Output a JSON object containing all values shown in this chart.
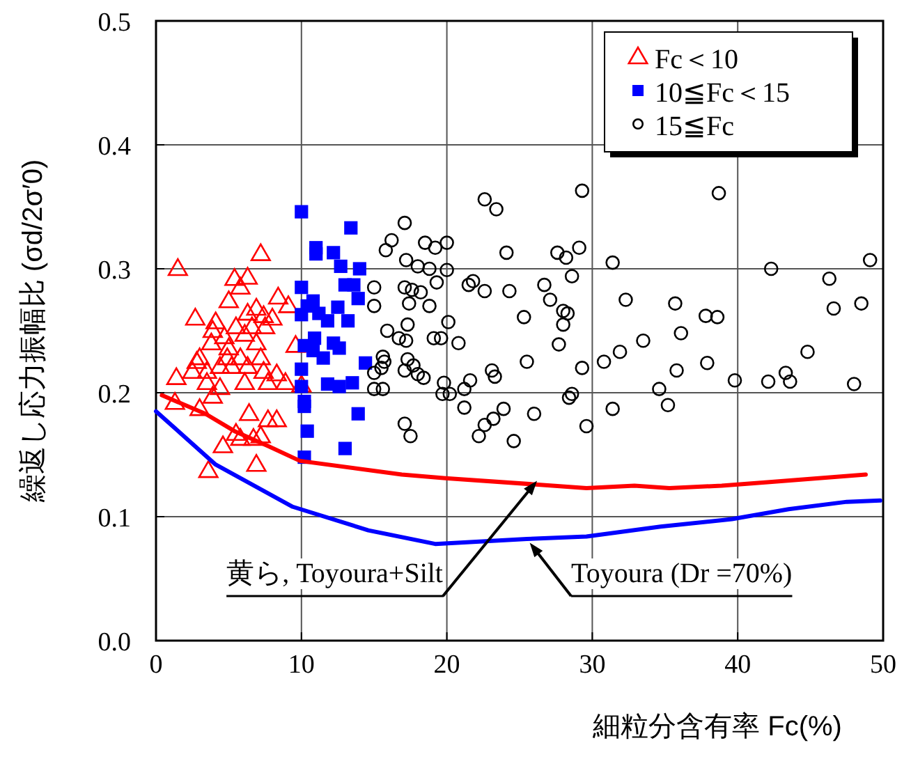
{
  "chart_data": {
    "type": "scatter",
    "xlabel": "細粒分含有率 Fc(%)",
    "ylabel": "繰返し応力振幅比 (σd/2σ′0)",
    "xlim": [
      0,
      50
    ],
    "ylim": [
      0,
      0.5
    ],
    "xticks": [
      0,
      10,
      20,
      30,
      40,
      50
    ],
    "yticks": [
      {
        "value": 0,
        "label": "0.0"
      },
      0.1,
      0.2,
      0.3,
      0.4,
      0.5
    ],
    "grid": true,
    "legend": "top right",
    "series": [
      {
        "name": "Fc＜10",
        "type": "scatter",
        "marker": "triangle",
        "color": "#ff0000",
        "x": [
          7.2,
          1.5,
          5.4,
          6.3,
          5.8,
          8.4,
          9.1,
          5.0,
          2.7,
          4.1,
          6.3,
          6.9,
          7.4,
          8.0,
          5.5,
          6.6,
          7.5,
          6.1,
          3.9,
          4.7,
          3.8,
          5.0,
          6.9,
          9.6,
          3.0,
          2.8,
          4.9,
          5.8,
          7.2,
          2.5,
          3.5,
          4.4,
          5.2,
          6.3,
          7.4,
          8.3,
          1.4,
          3.5,
          4.4,
          6.1,
          7.7,
          8.9,
          10.0,
          3.9,
          1.3,
          3.0,
          6.4,
          7.7,
          8.3,
          5.5,
          5.8,
          4.6,
          7.2,
          6.7,
          6.9,
          3.6
        ],
        "values": [
          0.312,
          0.3,
          0.292,
          0.293,
          0.285,
          0.277,
          0.27,
          0.274,
          0.26,
          0.257,
          0.264,
          0.268,
          0.262,
          0.26,
          0.253,
          0.253,
          0.253,
          0.247,
          0.25,
          0.245,
          0.24,
          0.236,
          0.24,
          0.238,
          0.228,
          0.225,
          0.228,
          0.228,
          0.228,
          0.217,
          0.217,
          0.221,
          0.221,
          0.221,
          0.217,
          0.215,
          0.212,
          0.208,
          0.204,
          0.208,
          0.208,
          0.208,
          0.206,
          0.197,
          0.192,
          0.187,
          0.183,
          0.178,
          0.178,
          0.167,
          0.163,
          0.157,
          0.165,
          0.163,
          0.142,
          0.137
        ]
      },
      {
        "name": "10≦Fc＜15",
        "type": "scatter",
        "marker": "square",
        "color": "#0000ff",
        "x": [
          10.0,
          13.4,
          11.0,
          11.0,
          12.2,
          12.7,
          14.0,
          10.0,
          13.0,
          13.6,
          13.9,
          10.8,
          10.4,
          11.2,
          11.8,
          12.5,
          13.2,
          10.0,
          10.9,
          10.2,
          10.8,
          12.2,
          12.6,
          11.5,
          14.4,
          10.0,
          10.0,
          11.8,
          12.6,
          13.5,
          10.2,
          10.2,
          13.9,
          10.4,
          13.0,
          10.2
        ],
        "values": [
          0.346,
          0.333,
          0.317,
          0.312,
          0.313,
          0.302,
          0.3,
          0.285,
          0.287,
          0.287,
          0.276,
          0.274,
          0.27,
          0.264,
          0.258,
          0.269,
          0.258,
          0.263,
          0.244,
          0.238,
          0.234,
          0.24,
          0.236,
          0.228,
          0.224,
          0.219,
          0.205,
          0.207,
          0.205,
          0.208,
          0.193,
          0.189,
          0.183,
          0.169,
          0.155,
          0.148
        ]
      },
      {
        "name": "15≦Fc",
        "type": "scatter",
        "marker": "circle",
        "color": "#000000",
        "x": [
          17.1,
          16.2,
          15.8,
          18.5,
          19.2,
          20.0,
          17.2,
          18.0,
          18.8,
          20.0,
          22.6,
          23.4,
          24.1,
          27.6,
          28.2,
          29.1,
          29.3,
          31.4,
          28.6,
          15.0,
          15.0,
          17.1,
          17.6,
          17.4,
          18.2,
          18.8,
          19.3,
          21.5,
          21.8,
          22.6,
          24.3,
          26.7,
          27.1,
          28.0,
          28.3,
          28.0,
          32.3,
          25.3,
          20.1,
          17.3,
          15.9,
          16.7,
          17.2,
          19.1,
          19.6,
          20.8,
          27.7,
          15.6,
          15.7,
          15.5,
          15.0,
          17.3,
          17.7,
          17.1,
          18.0,
          18.4,
          23.1,
          23.3,
          25.5,
          29.3,
          30.8,
          31.9,
          19.8,
          21.6,
          21.2,
          19.7,
          20.2,
          15.0,
          15.6,
          28.6,
          28.4,
          31.4,
          21.2,
          23.9,
          23.2,
          22.6,
          26.0,
          17.1,
          17.5,
          22.2,
          24.6,
          29.6,
          38.7,
          42.3,
          49.1,
          46.3,
          46.6,
          48.5,
          35.7,
          37.8,
          38.6,
          36.1,
          33.5,
          44.8,
          35.8,
          37.9,
          39.8,
          42.1,
          43.3,
          43.6,
          48.0,
          34.6,
          35.2
        ],
        "values": [
          0.337,
          0.323,
          0.315,
          0.321,
          0.317,
          0.321,
          0.307,
          0.302,
          0.3,
          0.299,
          0.356,
          0.348,
          0.313,
          0.313,
          0.309,
          0.317,
          0.363,
          0.305,
          0.294,
          0.285,
          0.27,
          0.285,
          0.283,
          0.272,
          0.281,
          0.27,
          0.289,
          0.287,
          0.29,
          0.282,
          0.282,
          0.287,
          0.275,
          0.266,
          0.264,
          0.255,
          0.275,
          0.261,
          0.257,
          0.255,
          0.25,
          0.244,
          0.242,
          0.244,
          0.244,
          0.24,
          0.239,
          0.229,
          0.225,
          0.22,
          0.216,
          0.227,
          0.222,
          0.218,
          0.215,
          0.212,
          0.218,
          0.213,
          0.225,
          0.22,
          0.225,
          0.233,
          0.208,
          0.21,
          0.203,
          0.199,
          0.199,
          0.203,
          0.203,
          0.199,
          0.196,
          0.187,
          0.188,
          0.187,
          0.179,
          0.174,
          0.183,
          0.175,
          0.165,
          0.165,
          0.161,
          0.173,
          0.361,
          0.3,
          0.307,
          0.292,
          0.268,
          0.272,
          0.272,
          0.262,
          0.261,
          0.248,
          0.242,
          0.233,
          0.218,
          0.224,
          0.21,
          0.209,
          0.216,
          0.209,
          0.207,
          0.203,
          0.19
        ]
      },
      {
        "type": "line",
        "color": "#ff0000",
        "marker": "none",
        "x": [
          0.4,
          3.4,
          5.4,
          7.7,
          9.9,
          16.9,
          19.9,
          26.1,
          29.6,
          32.9,
          35.3,
          38.9,
          42.2,
          48.8
        ],
        "values": [
          0.198,
          0.183,
          0.169,
          0.157,
          0.145,
          0.134,
          0.131,
          0.126,
          0.123,
          0.125,
          0.123,
          0.125,
          0.128,
          0.134
        ]
      },
      {
        "type": "line",
        "color": "#0000ff",
        "marker": "none",
        "x": [
          0.0,
          4.1,
          9.4,
          14.6,
          19.2,
          25.5,
          29.6,
          34.7,
          39.6,
          43.5,
          47.5,
          49.8
        ],
        "values": [
          0.185,
          0.142,
          0.108,
          0.089,
          0.078,
          0.082,
          0.084,
          0.092,
          0.098,
          0.106,
          0.112,
          0.113
        ]
      }
    ],
    "annotations": [
      {
        "text": "黄ら, Toyoura+Silt",
        "x": 26.2,
        "y": 0.129
      },
      {
        "text": "Toyoura (Dr =70%)",
        "x": 25.7,
        "y": 0.079
      }
    ]
  }
}
